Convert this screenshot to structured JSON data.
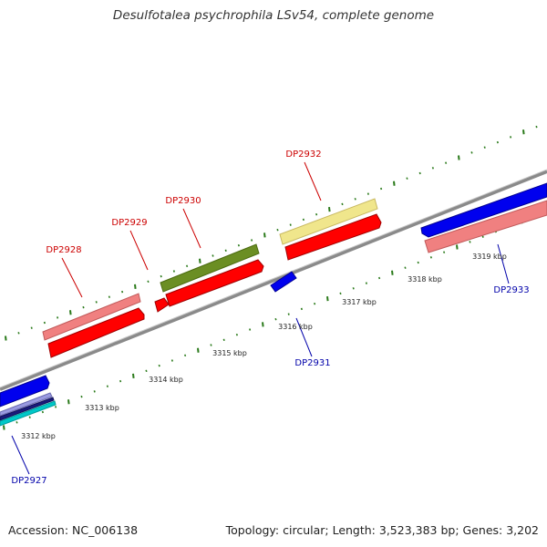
{
  "title": "Desulfotalea psychrophila LSv54, complete genome",
  "footer": {
    "accession": "Accession: NC_006138",
    "summary": "Topology: circular; Length: 3,523,383 bp; Genes: 3,202"
  },
  "colors": {
    "forward_label": "#cc0000",
    "reverse_label": "#0000aa",
    "tick": "#2a7a1a",
    "backbone": "#8a8a8a",
    "cds_red": "#ff0000",
    "pink": "#f08080",
    "olive": "#6b8e23",
    "pale_yellow": "#f0e68c",
    "blue": "#0000ee",
    "cyan": "#00c8c8"
  },
  "scale_labels": [
    "3312 kbp",
    "3313 kbp",
    "3314 kbp",
    "3315 kbp",
    "3316 kbp",
    "3317 kbp",
    "3318 kbp",
    "3319 kbp"
  ],
  "gene_labels": {
    "forward": [
      "DP2928",
      "DP2929",
      "DP2930",
      "DP2932"
    ],
    "reverse": [
      "DP2927",
      "DP2931",
      "DP2933"
    ]
  }
}
